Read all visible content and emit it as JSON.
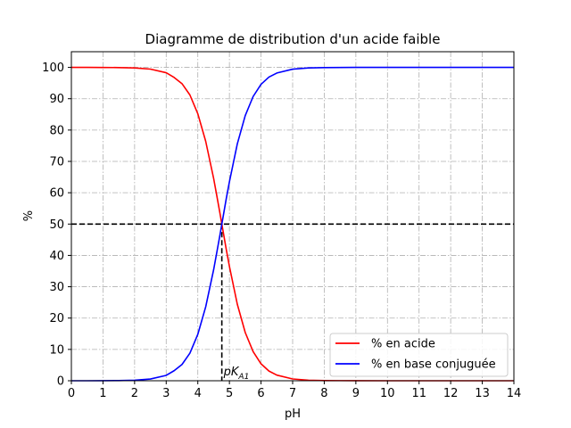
{
  "chart_data": {
    "type": "line",
    "title": "Diagramme de distribution d'un acide faible",
    "xlabel": "pH",
    "ylabel": "%",
    "xlim": [
      0,
      14
    ],
    "ylim": [
      0,
      105
    ],
    "xticks": [
      "0",
      "1",
      "2",
      "3",
      "4",
      "5",
      "6",
      "7",
      "8",
      "9",
      "10",
      "11",
      "12",
      "13",
      "14"
    ],
    "yticks": [
      "0",
      "10",
      "20",
      "30",
      "40",
      "50",
      "60",
      "70",
      "80",
      "90",
      "100"
    ],
    "grid": true,
    "legend_position": "bottom-right",
    "series": [
      {
        "name": "% en acide",
        "color": "#ff0000",
        "x": [
          0,
          0.5,
          1,
          1.5,
          2,
          2.5,
          3,
          3.25,
          3.5,
          3.75,
          4,
          4.25,
          4.5,
          4.6,
          4.7,
          4.76,
          4.8,
          4.9,
          5,
          5.25,
          5.5,
          5.75,
          6,
          6.25,
          6.5,
          7,
          7.5,
          8,
          9,
          10,
          11,
          12,
          13,
          14
        ],
        "y": [
          100,
          100,
          99.98,
          99.94,
          99.83,
          99.45,
          98.29,
          96.8,
          94.8,
          91.2,
          85.2,
          76.4,
          64.6,
          59.1,
          53.5,
          50,
          47.7,
          41.9,
          36.5,
          24.4,
          15.4,
          9.3,
          5.4,
          3.1,
          1.8,
          0.57,
          0.18,
          0.06,
          0.01,
          0,
          0,
          0,
          0,
          0
        ]
      },
      {
        "name": "% en base conjuguée",
        "color": "#0000ff",
        "x": [
          0,
          0.5,
          1,
          1.5,
          2,
          2.5,
          3,
          3.25,
          3.5,
          3.75,
          4,
          4.25,
          4.5,
          4.6,
          4.7,
          4.76,
          4.8,
          4.9,
          5,
          5.25,
          5.5,
          5.75,
          6,
          6.25,
          6.5,
          7,
          7.5,
          8,
          9,
          10,
          11,
          12,
          13,
          14
        ],
        "y": [
          0,
          0,
          0.02,
          0.06,
          0.17,
          0.55,
          1.71,
          3.2,
          5.2,
          8.8,
          14.8,
          23.6,
          35.4,
          40.9,
          46.5,
          50,
          52.3,
          58.1,
          63.5,
          75.6,
          84.6,
          90.7,
          94.6,
          96.9,
          98.2,
          99.43,
          99.82,
          99.94,
          99.99,
          100,
          100,
          100,
          100,
          100
        ]
      }
    ],
    "reference_lines": {
      "horizontal_y": 50,
      "vertical_x": 4.76,
      "color": "#000000"
    },
    "annotation": {
      "text": "pK",
      "subscript": "A1",
      "x": 4.76
    }
  }
}
